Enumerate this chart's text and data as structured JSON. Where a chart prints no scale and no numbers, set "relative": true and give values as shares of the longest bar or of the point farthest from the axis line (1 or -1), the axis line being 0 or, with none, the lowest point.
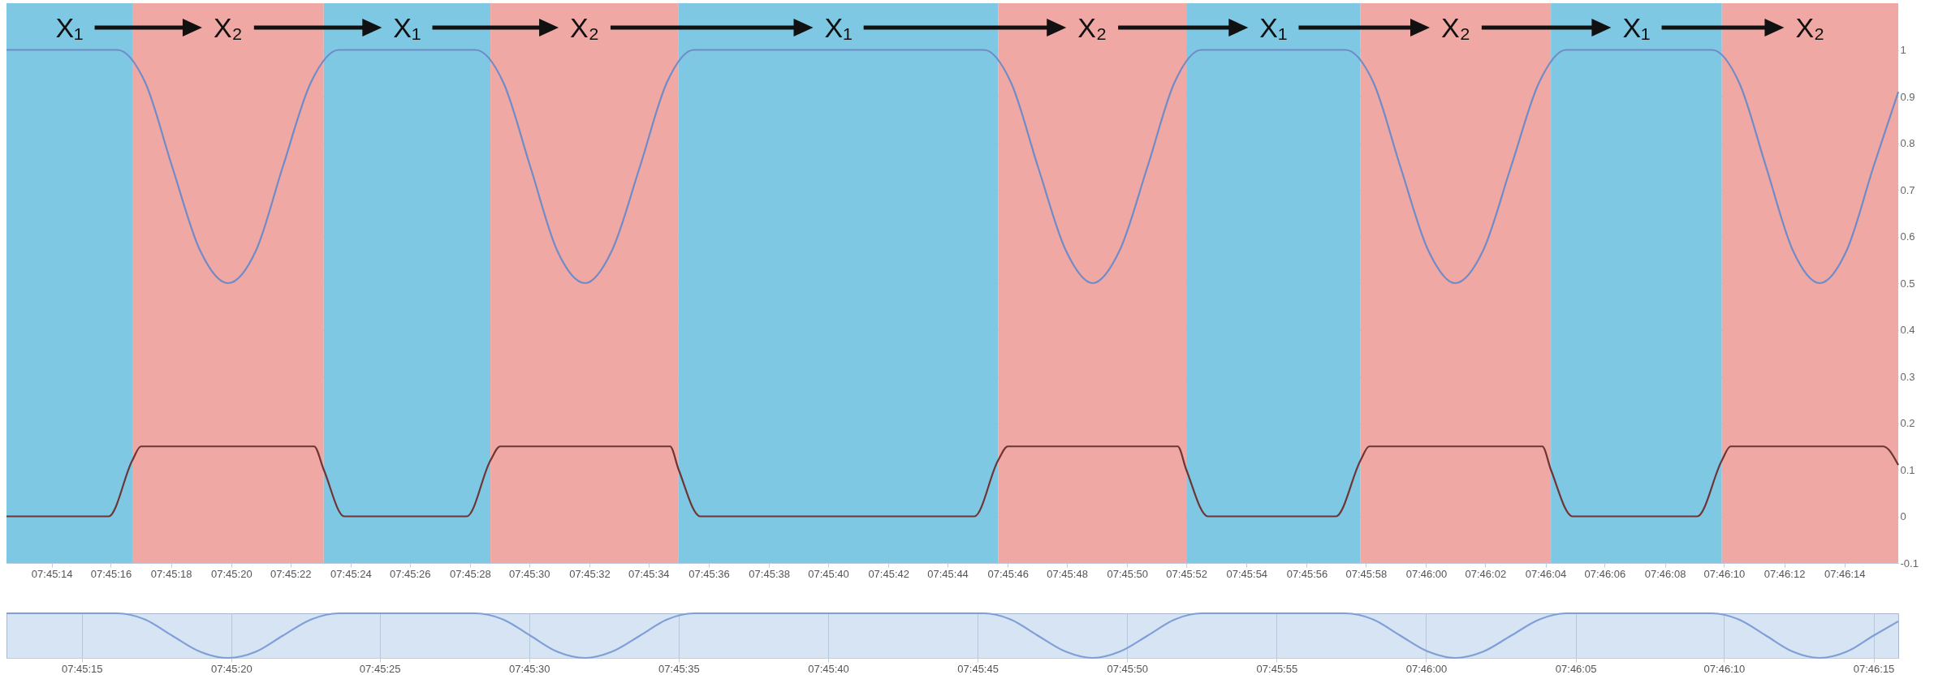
{
  "chart_data": [
    {
      "type": "line",
      "xlim": [
        7.75347,
        7.77106
      ],
      "ylim": [
        -0.1,
        1.1
      ],
      "yticks": [
        -0.1,
        0,
        0.1,
        0.2,
        0.3,
        0.4,
        0.5,
        0.6,
        0.7,
        0.8,
        0.9,
        1
      ],
      "xticks": [
        {
          "value": 7.75389,
          "label": "07:45:14"
        },
        {
          "value": 7.75444,
          "label": "07:45:16"
        },
        {
          "value": 7.755,
          "label": "07:45:18"
        },
        {
          "value": 7.75556,
          "label": "07:45:20"
        },
        {
          "value": 7.75611,
          "label": "07:45:22"
        },
        {
          "value": 7.75667,
          "label": "07:45:24"
        },
        {
          "value": 7.75722,
          "label": "07:45:26"
        },
        {
          "value": 7.75778,
          "label": "07:45:28"
        },
        {
          "value": 7.75833,
          "label": "07:45:30"
        },
        {
          "value": 7.75889,
          "label": "07:45:32"
        },
        {
          "value": 7.75944,
          "label": "07:45:34"
        },
        {
          "value": 7.76,
          "label": "07:45:36"
        },
        {
          "value": 7.76056,
          "label": "07:45:38"
        },
        {
          "value": 7.76111,
          "label": "07:45:40"
        },
        {
          "value": 7.76167,
          "label": "07:45:42"
        },
        {
          "value": 7.76222,
          "label": "07:45:44"
        },
        {
          "value": 7.76278,
          "label": "07:45:46"
        },
        {
          "value": 7.76333,
          "label": "07:45:48"
        },
        {
          "value": 7.76389,
          "label": "07:45:50"
        },
        {
          "value": 7.76444,
          "label": "07:45:52"
        },
        {
          "value": 7.765,
          "label": "07:45:54"
        },
        {
          "value": 7.76556,
          "label": "07:45:56"
        },
        {
          "value": 7.76611,
          "label": "07:45:58"
        },
        {
          "value": 7.76667,
          "label": "07:46:00"
        },
        {
          "value": 7.76722,
          "label": "07:46:02"
        },
        {
          "value": 7.76778,
          "label": "07:46:04"
        },
        {
          "value": 7.76833,
          "label": "07:46:06"
        },
        {
          "value": 7.76889,
          "label": "07:46:08"
        },
        {
          "value": 7.76944,
          "label": "07:46:10"
        },
        {
          "value": 7.77,
          "label": "07:46:12"
        },
        {
          "value": 7.77056,
          "label": "07:46:14"
        }
      ],
      "grid": "y",
      "bands": [
        {
          "axis": "x",
          "from": 7.75347,
          "to": 7.75464,
          "label": "X₁",
          "color": "#7ec8e3"
        },
        {
          "axis": "x",
          "from": 7.75464,
          "to": 7.75642,
          "label": "X₂",
          "color": "#f0a8a4"
        },
        {
          "axis": "x",
          "from": 7.75642,
          "to": 7.75797,
          "label": "X₁",
          "color": "#7ec8e3"
        },
        {
          "axis": "x",
          "from": 7.75797,
          "to": 7.75972,
          "label": "X₂",
          "color": "#f0a8a4"
        },
        {
          "axis": "x",
          "from": 7.75972,
          "to": 7.76269,
          "label": "X₁",
          "color": "#7ec8e3"
        },
        {
          "axis": "x",
          "from": 7.76269,
          "to": 7.76444,
          "label": "X₂",
          "color": "#f0a8a4"
        },
        {
          "axis": "x",
          "from": 7.76444,
          "to": 7.76606,
          "label": "X₁",
          "color": "#7ec8e3"
        },
        {
          "axis": "x",
          "from": 7.76606,
          "to": 7.76783,
          "label": "X₂",
          "color": "#f0a8a4"
        },
        {
          "axis": "x",
          "from": 7.76783,
          "to": 7.76942,
          "label": "X₁",
          "color": "#7ec8e3"
        },
        {
          "axis": "x",
          "from": 7.76942,
          "to": 7.77106,
          "label": "X₂",
          "color": "#f0a8a4"
        }
      ],
      "series": [
        {
          "color": "#6f8cc8",
          "x": [
            7.75347,
            7.7545,
            7.75476,
            7.75501,
            7.75527,
            7.75553,
            7.75579,
            7.75604,
            7.7563,
            7.75656,
            7.75783,
            7.75809,
            7.75834,
            7.75859,
            7.75885,
            7.7591,
            7.75936,
            7.75961,
            7.75986,
            7.76256,
            7.76281,
            7.76306,
            7.76332,
            7.76357,
            7.76382,
            7.76408,
            7.76433,
            7.76458,
            7.76592,
            7.76618,
            7.76643,
            7.76669,
            7.76694,
            7.7672,
            7.76746,
            7.76772,
            7.76797,
            7.76933,
            7.76958,
            7.76983,
            7.77008,
            7.77033,
            7.77058,
            7.77083,
            7.77106
          ],
          "values": [
            1,
            1,
            0.93,
            0.75,
            0.57,
            0.5,
            0.57,
            0.75,
            0.93,
            1,
            1,
            0.93,
            0.75,
            0.57,
            0.5,
            0.57,
            0.75,
            0.93,
            1,
            1,
            0.93,
            0.75,
            0.57,
            0.5,
            0.57,
            0.75,
            0.93,
            1,
            1,
            0.93,
            0.75,
            0.57,
            0.5,
            0.57,
            0.75,
            0.93,
            1,
            1,
            0.93,
            0.75,
            0.57,
            0.5,
            0.57,
            0.75,
            0.91
          ]
        },
        {
          "color": "#6e3535",
          "x": [
            7.75347,
            7.75442,
            7.75464,
            7.75472,
            7.75633,
            7.75642,
            7.75661,
            7.75775,
            7.75797,
            7.75806,
            7.75964,
            7.75972,
            7.75992,
            7.76247,
            7.76269,
            7.76278,
            7.76436,
            7.76444,
            7.76464,
            7.76583,
            7.76606,
            7.76614,
            7.76775,
            7.76783,
            7.76803,
            7.76919,
            7.76942,
            7.7695,
            7.77092,
            7.77106
          ],
          "values": [
            0,
            0,
            0.12,
            0.15,
            0.15,
            0.1,
            0,
            0,
            0.12,
            0.15,
            0.15,
            0.1,
            0,
            0,
            0.12,
            0.15,
            0.15,
            0.1,
            0,
            0,
            0.12,
            0.15,
            0.15,
            0.1,
            0,
            0,
            0.12,
            0.15,
            0.15,
            0.11
          ]
        }
      ]
    },
    {
      "type": "line",
      "relative": true,
      "xlim": [
        7.75347,
        7.77106
      ],
      "xticks": [
        {
          "value": 7.75417,
          "label": "07:45:15"
        },
        {
          "value": 7.75556,
          "label": "07:45:20"
        },
        {
          "value": 7.75694,
          "label": "07:45:25"
        },
        {
          "value": 7.75833,
          "label": "07:45:30"
        },
        {
          "value": 7.75972,
          "label": "07:45:35"
        },
        {
          "value": 7.76111,
          "label": "07:45:40"
        },
        {
          "value": 7.7625,
          "label": "07:45:45"
        },
        {
          "value": 7.76389,
          "label": "07:45:50"
        },
        {
          "value": 7.76528,
          "label": "07:45:55"
        },
        {
          "value": 7.76667,
          "label": "07:46:00"
        },
        {
          "value": 7.76806,
          "label": "07:46:05"
        },
        {
          "value": 7.76944,
          "label": "07:46:10"
        },
        {
          "value": 7.77083,
          "label": "07:46:15"
        }
      ],
      "grid": "x",
      "series": [
        {
          "color": "#7f9fd6",
          "x": [
            7.75347,
            7.7545,
            7.75476,
            7.75501,
            7.75527,
            7.75553,
            7.75579,
            7.75604,
            7.7563,
            7.75656,
            7.75783,
            7.75809,
            7.75834,
            7.75859,
            7.75885,
            7.7591,
            7.75936,
            7.75961,
            7.75986,
            7.76256,
            7.76281,
            7.76306,
            7.76332,
            7.76357,
            7.76382,
            7.76408,
            7.76433,
            7.76458,
            7.76592,
            7.76618,
            7.76643,
            7.76669,
            7.76694,
            7.7672,
            7.76746,
            7.76772,
            7.76797,
            7.76933,
            7.76958,
            7.76983,
            7.77008,
            7.77033,
            7.77058,
            7.77083,
            7.77106
          ],
          "values": [
            1,
            1,
            0.86,
            0.5,
            0.14,
            0,
            0.14,
            0.5,
            0.86,
            1,
            1,
            0.86,
            0.5,
            0.14,
            0,
            0.14,
            0.5,
            0.86,
            1,
            1,
            0.86,
            0.5,
            0.14,
            0,
            0.14,
            0.5,
            0.86,
            1,
            1,
            0.86,
            0.5,
            0.14,
            0,
            0.14,
            0.5,
            0.86,
            1,
            1,
            0.86,
            0.5,
            0.14,
            0,
            0.14,
            0.5,
            0.82
          ]
        }
      ]
    }
  ]
}
